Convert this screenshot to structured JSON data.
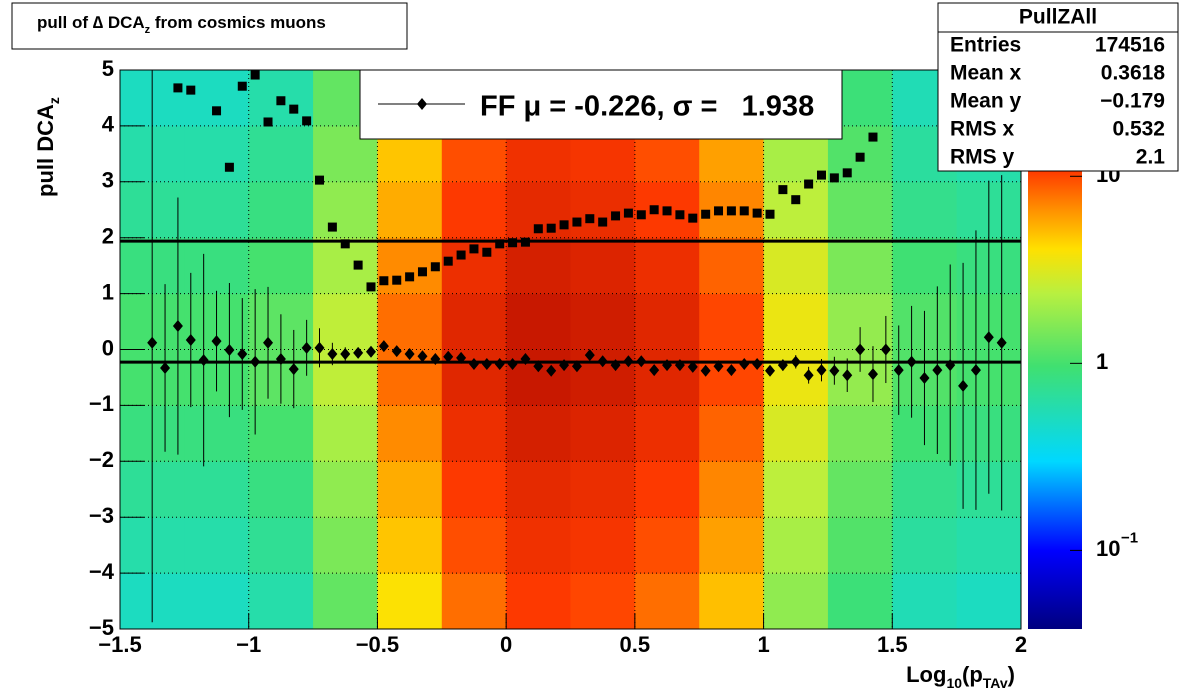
{
  "chart_data": {
    "type": "heatmap",
    "title": [
      "pull of ∆ DCA",
      "z",
      " from cosmics muons"
    ],
    "ylabel": [
      "pull DCA",
      "z"
    ],
    "xlabel": [
      "Log",
      "10",
      "(p",
      "TAv",
      ")"
    ],
    "xlim": [
      -1.5,
      2
    ],
    "ylim": [
      -5,
      5
    ],
    "xticks": [
      {
        "value": -1.5,
        "label": "−1.5"
      },
      {
        "value": -1,
        "label": "−1"
      },
      {
        "value": -0.5,
        "label": "−0.5"
      },
      0,
      0.5,
      1,
      1.5,
      2
    ],
    "yticks": [
      {
        "value": -5,
        "label": "−5"
      },
      {
        "value": -4,
        "label": "−4"
      },
      {
        "value": -3,
        "label": "−3"
      },
      {
        "value": -2,
        "label": "−2"
      },
      {
        "value": -1,
        "label": "−1"
      },
      0,
      1,
      2,
      3,
      4,
      5
    ],
    "grid": true,
    "zlog": true,
    "zlim": [
      0.038,
      37
    ],
    "zticks": [
      {
        "value": 0.1,
        "label": "10",
        "exponent": "−1"
      },
      1,
      10
    ],
    "palette": [
      [
        0,
        "#00007f"
      ],
      [
        0.14,
        "#0000ff"
      ],
      [
        0.3,
        "#00d8ff"
      ],
      [
        0.47,
        "#40e070"
      ],
      [
        0.6,
        "#b8f040"
      ],
      [
        0.68,
        "#ffe000"
      ],
      [
        0.75,
        "#ff9000"
      ],
      [
        0.82,
        "#ff3a00"
      ],
      [
        1,
        "#a00000"
      ]
    ],
    "xbins": [
      -1.5,
      -1.25,
      -1,
      -0.75,
      -0.5,
      -0.25,
      0,
      0.25,
      0.5,
      0.75,
      1,
      1.25,
      1.5,
      1.75,
      2
    ],
    "ybins": [
      -5,
      -4,
      -3,
      -2,
      -1,
      0,
      1,
      2,
      3,
      4,
      5
    ],
    "z": [
      [
        0.5,
        0.5,
        0.6,
        1.25,
        4,
        8,
        11,
        10,
        8,
        5,
        1.75,
        0.9,
        0.55,
        0.5
      ],
      [
        0.6,
        0.6,
        0.72,
        1.5,
        4.8,
        9.6,
        13,
        12,
        9.6,
        6,
        2.1,
        1.1,
        0.66,
        0.6
      ],
      [
        0.7,
        0.7,
        0.84,
        1.75,
        5.6,
        11,
        15,
        14,
        11,
        7,
        2.45,
        1.26,
        0.77,
        0.7
      ],
      [
        0.85,
        0.85,
        1,
        2.1,
        6.8,
        13.6,
        18.7,
        17,
        13.6,
        8.5,
        3,
        1.5,
        0.94,
        0.85
      ],
      [
        1,
        1,
        1.2,
        2.5,
        8,
        16,
        22,
        20,
        16,
        10,
        3.5,
        1.8,
        1.1,
        1
      ],
      [
        1,
        1,
        1.2,
        2.5,
        8,
        16,
        22,
        20,
        16,
        10,
        3.5,
        1.8,
        1.1,
        1
      ],
      [
        0.85,
        0.85,
        1,
        2.1,
        6.8,
        13.6,
        18.7,
        17,
        13.6,
        8.5,
        3,
        1.5,
        0.94,
        0.85
      ],
      [
        0.7,
        0.7,
        0.84,
        1.75,
        5.6,
        11,
        15,
        14,
        11,
        7,
        2.45,
        1.26,
        0.77,
        0.7
      ],
      [
        0.6,
        0.6,
        0.72,
        1.5,
        4.8,
        9.6,
        13,
        12,
        9.6,
        6,
        2.1,
        1.1,
        0.66,
        0.6
      ],
      [
        0.5,
        0.5,
        0.6,
        1.25,
        4,
        8,
        11,
        10,
        8,
        5,
        1.75,
        0.9,
        0.55,
        0.5
      ]
    ],
    "x": [
      -1.375,
      -1.325,
      -1.275,
      -1.225,
      -1.175,
      -1.125,
      -1.075,
      -1.025,
      -0.975,
      -0.925,
      -0.875,
      -0.825,
      -0.775,
      -0.725,
      -0.675,
      -0.625,
      -0.575,
      -0.525,
      -0.475,
      -0.425,
      -0.375,
      -0.325,
      -0.275,
      -0.225,
      -0.175,
      -0.125,
      -0.075,
      -0.025,
      0.025,
      0.075,
      0.125,
      0.175,
      0.225,
      0.275,
      0.325,
      0.375,
      0.425,
      0.475,
      0.525,
      0.575,
      0.625,
      0.675,
      0.725,
      0.775,
      0.825,
      0.875,
      0.925,
      0.975,
      1.025,
      1.075,
      1.125,
      1.175,
      1.225,
      1.275,
      1.325,
      1.375,
      1.425,
      1.475,
      1.525,
      1.575,
      1.625,
      1.675,
      1.725,
      1.775,
      1.825,
      1.875,
      1.925
    ],
    "series": [
      {
        "name": "FF μ = -0.226, σ =   1.938",
        "marker": "diamond",
        "color": "#000000",
        "values": [
          0.12,
          -0.33,
          0.42,
          0.17,
          -0.19,
          0.15,
          -0.01,
          -0.08,
          -0.22,
          0.12,
          -0.17,
          -0.35,
          0.03,
          0.03,
          -0.08,
          -0.08,
          -0.06,
          -0.04,
          0.06,
          -0.03,
          -0.08,
          -0.12,
          -0.17,
          -0.13,
          -0.15,
          -0.26,
          -0.26,
          -0.26,
          -0.26,
          -0.17,
          -0.3,
          -0.38,
          -0.28,
          -0.3,
          -0.1,
          -0.21,
          -0.28,
          -0.21,
          -0.21,
          -0.37,
          -0.28,
          -0.28,
          -0.31,
          -0.38,
          -0.3,
          -0.37,
          -0.26,
          -0.26,
          -0.38,
          -0.28,
          -0.22,
          -0.46,
          -0.37,
          -0.38,
          -0.46,
          0,
          -0.44,
          0,
          -0.37,
          -0.22,
          -0.51,
          -0.37,
          -0.28,
          -0.65,
          -0.37,
          0.22,
          0.12
        ],
        "errors": [
          5,
          1.5,
          2.3,
          1.2,
          1.9,
          0.9,
          1.2,
          1.0,
          1.3,
          1.0,
          0.8,
          0.7,
          0.5,
          0.35,
          0.2,
          0.12,
          0.08,
          0.06,
          0.05,
          0.04,
          0.03,
          0.03,
          0.03,
          0.03,
          0.03,
          0.03,
          0.03,
          0.03,
          0.03,
          0.03,
          0.03,
          0.03,
          0.03,
          0.03,
          0.03,
          0.03,
          0.03,
          0.03,
          0.03,
          0.03,
          0.03,
          0.03,
          0.03,
          0.04,
          0.04,
          0.05,
          0.06,
          0.07,
          0.08,
          0.1,
          0.12,
          0.15,
          0.2,
          0.25,
          0.3,
          0.4,
          0.5,
          0.6,
          0.8,
          1.0,
          1.2,
          1.5,
          1.8,
          2.2,
          2.5,
          2.8,
          3.0
        ]
      },
      {
        "marker": "square",
        "color": "#000000",
        "values": [
          null,
          null,
          4.68,
          4.64,
          null,
          4.27,
          3.26,
          4.71,
          4.91,
          4.07,
          4.45,
          4.3,
          4.09,
          3.03,
          2.19,
          1.89,
          1.51,
          1.12,
          1.23,
          1.24,
          1.3,
          1.39,
          1.48,
          1.58,
          1.69,
          1.8,
          1.74,
          1.89,
          1.91,
          1.92,
          2.16,
          2.17,
          2.23,
          2.28,
          2.34,
          2.28,
          2.39,
          2.44,
          2.41,
          2.5,
          2.48,
          2.41,
          2.35,
          2.42,
          2.48,
          2.48,
          2.48,
          2.44,
          2.42,
          2.86,
          2.68,
          2.96,
          3.12,
          3.07,
          3.16,
          3.44,
          3.8,
          null,
          null,
          null,
          null,
          null,
          null,
          null,
          null,
          null,
          null
        ]
      }
    ],
    "fit_mean": -0.226,
    "fit_sigma": 1.938,
    "stats": {
      "title": "PullZAll",
      "rows": [
        [
          "Entries",
          "174516"
        ],
        [
          "Mean x",
          "0.3618"
        ],
        [
          "Mean y",
          "−0.179"
        ],
        [
          "RMS x",
          "0.532"
        ],
        [
          "RMS y",
          "2.1"
        ]
      ]
    }
  }
}
